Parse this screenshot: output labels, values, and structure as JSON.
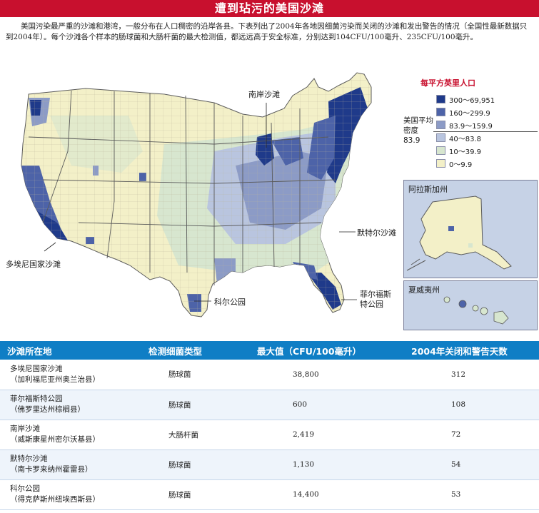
{
  "title": "遭到玷污的美国沙滩",
  "intro": "美国污染最严重的沙滩和港湾，一般分布在人口稠密的沿岸各县。下表列出了2004年各地因细菌污染而关闭的沙滩和发出警告的情况（全国性最新数据只到2004年）。每个沙滩各个样本的肠球菌和大肠杆菌的最大检测值，都远远高于安全标准，分别达到104CFU/100毫升、235CFU/100毫升。",
  "map": {
    "callouts": {
      "north_shore": "南岸沙滩",
      "doheny": "多埃尼国家沙滩",
      "myrtle": "默特尔沙滩",
      "kirk": "科尔公园",
      "fort_pierce": "菲尔福斯\n特公园"
    },
    "colors": {
      "c1": "#1f3a8a",
      "c2": "#4d63a8",
      "c3": "#8c9bc6",
      "c4": "#b9c5df",
      "c5": "#d7e6cf",
      "c6": "#f3f0c8",
      "border": "#5a5a5a"
    }
  },
  "legend": {
    "title": "每平方英里人口",
    "items": [
      {
        "label": "300～69,951",
        "color": "#1f3a8a"
      },
      {
        "label": "160～299.9",
        "color": "#4d63a8"
      },
      {
        "label": "83.9～159.9",
        "color": "#8c9bc6"
      },
      {
        "label": "40～83.8",
        "color": "#b9c5df"
      },
      {
        "label": "10～39.9",
        "color": "#d7e6cf"
      },
      {
        "label": "0～9.9",
        "color": "#f3f0c8"
      }
    ],
    "average_label": "美国平均密度",
    "average_value": "83.9"
  },
  "insets": {
    "alaska": "阿拉斯加州",
    "hawaii": "夏威夷州"
  },
  "table": {
    "headers": [
      "沙滩所在地",
      "检测细菌类型",
      "最大值（CFU/100毫升）",
      "2004年关闭和警告天数"
    ],
    "rows": [
      {
        "name": "多埃尼国家沙滩",
        "sub": "（加利福尼亚州奥兰治县）",
        "bacteria": "肠球菌",
        "max": "38,800",
        "days": "312"
      },
      {
        "name": "菲尔福斯特公园",
        "sub": "（佛罗里达州棕榈县）",
        "bacteria": "肠球菌",
        "max": "600",
        "days": "108"
      },
      {
        "name": "南岸沙滩",
        "sub": "（威斯康星州密尔沃基县）",
        "bacteria": "大肠杆菌",
        "max": "2,419",
        "days": "72"
      },
      {
        "name": "默特尔沙滩",
        "sub": "（南卡罗来纳州霍雷县）",
        "bacteria": "肠球菌",
        "max": "1,130",
        "days": "54"
      },
      {
        "name": "科尔公园",
        "sub": "（得克萨斯州纽埃西斯县）",
        "bacteria": "肠球菌",
        "max": "14,400",
        "days": "53"
      }
    ]
  }
}
